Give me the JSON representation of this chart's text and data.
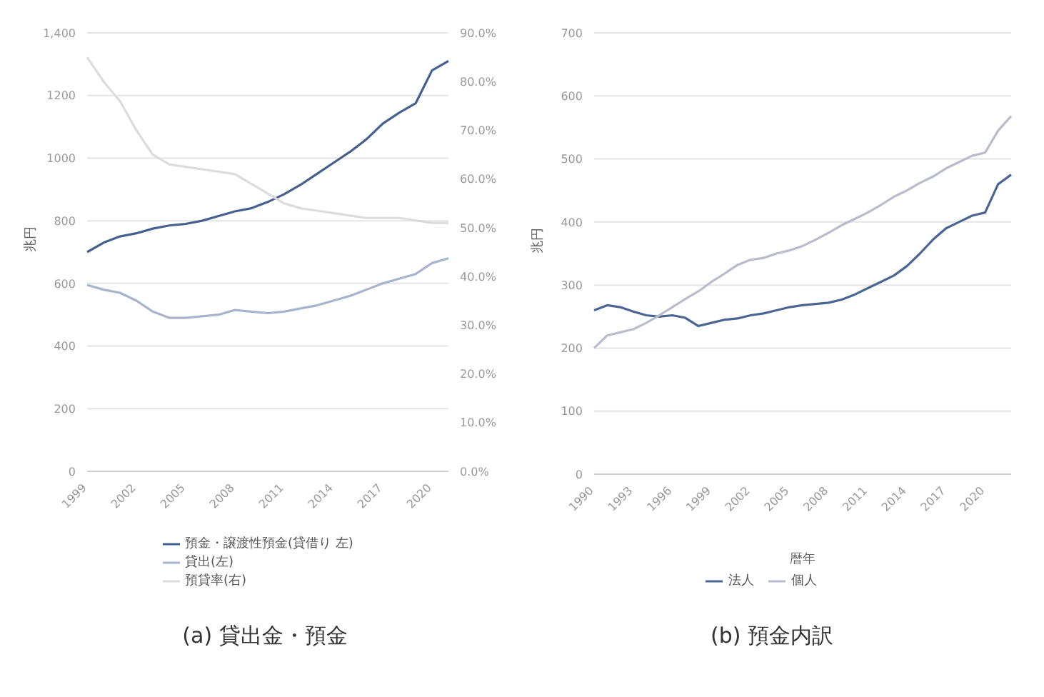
{
  "chart_data": [
    {
      "type": "line",
      "title": "(a) 貸出金・預金",
      "ylabel": "兆円",
      "categories": [
        "1999",
        null,
        null,
        "2002",
        null,
        null,
        "2005",
        null,
        null,
        "2008",
        null,
        null,
        "2011",
        null,
        null,
        "2014",
        null,
        null,
        "2017",
        null,
        null,
        "2020",
        null
      ],
      "series": [
        {
          "name": "預金・譲渡性預金(貸借り 左)",
          "color": "#44608f",
          "values": [
            700,
            730,
            750,
            760,
            775,
            785,
            790,
            800,
            815,
            830,
            840,
            860,
            885,
            915,
            950,
            985,
            1020,
            1060,
            1110,
            1145,
            1175,
            1280,
            1310
          ]
        },
        {
          "name": "貸出(左)",
          "color": "#a9b4cc",
          "values": [
            595,
            580,
            570,
            545,
            510,
            490,
            490,
            495,
            500,
            515,
            510,
            505,
            510,
            520,
            530,
            545,
            560,
            580,
            600,
            615,
            630,
            665,
            680
          ]
        },
        {
          "name": "預貸率(右)",
          "color": "#dcdcdc",
          "axis": "y2",
          "values": [
            85,
            80,
            76,
            70,
            65,
            63,
            62.5,
            62,
            61.5,
            61,
            59,
            57,
            55,
            54,
            53.5,
            53,
            52.5,
            52,
            52,
            52,
            51.5,
            51,
            51
          ]
        }
      ],
      "ylim": [
        0,
        1400
      ],
      "yticks": [
        0,
        200,
        400,
        600,
        800,
        1000,
        1200,
        {
          "value": 1400,
          "label": "1,400"
        }
      ],
      "y2lim": [
        0,
        90
      ],
      "y2ticks": [
        {
          "value": 0,
          "label": "0.0%"
        },
        {
          "value": 10,
          "label": "10.0%"
        },
        {
          "value": 20,
          "label": "20.0%"
        },
        {
          "value": 30,
          "label": "30.0%"
        },
        {
          "value": 40,
          "label": "40.0%"
        },
        {
          "value": 50,
          "label": "50.0%"
        },
        {
          "value": 60,
          "label": "60.0%"
        },
        {
          "value": 70,
          "label": "70.0%"
        },
        {
          "value": 80,
          "label": "80.0%"
        },
        {
          "value": 90,
          "label": "90.0%"
        }
      ],
      "grid": "y",
      "legend": "bottom",
      "marker": "none",
      "line_style": "solid"
    },
    {
      "type": "line",
      "title": "(b) 預金内訳",
      "ylabel": "兆円",
      "xlabel": "暦年",
      "categories": [
        "1990",
        null,
        null,
        "1993",
        null,
        null,
        "1996",
        null,
        null,
        "1999",
        null,
        null,
        "2002",
        null,
        null,
        "2005",
        null,
        null,
        "2008",
        null,
        null,
        "2011",
        null,
        null,
        "2014",
        null,
        null,
        "2017",
        null,
        null,
        "2020",
        null,
        null
      ],
      "series": [
        {
          "name": "法人",
          "color": "#4a6592",
          "values": [
            260,
            268,
            265,
            258,
            252,
            250,
            252,
            248,
            235,
            240,
            245,
            247,
            252,
            255,
            260,
            265,
            268,
            270,
            272,
            277,
            285,
            295,
            305,
            315,
            330,
            350,
            372,
            390,
            400,
            410,
            415,
            460,
            475
          ]
        },
        {
          "name": "個人",
          "color": "#b8bccb",
          "values": [
            200,
            220,
            225,
            230,
            240,
            252,
            265,
            278,
            290,
            305,
            318,
            332,
            340,
            343,
            350,
            355,
            362,
            372,
            383,
            395,
            405,
            415,
            427,
            440,
            450,
            462,
            472,
            485,
            495,
            505,
            510,
            545,
            568
          ]
        }
      ],
      "ylim": [
        0,
        700
      ],
      "yticks": [
        0,
        100,
        200,
        300,
        400,
        500,
        600,
        700
      ],
      "grid": "y",
      "legend": "bottom",
      "marker": "none",
      "line_style": "solid"
    }
  ]
}
